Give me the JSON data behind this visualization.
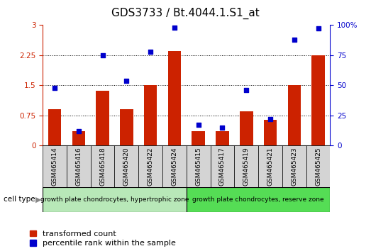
{
  "title": "GDS3733 / Bt.4044.1.S1_at",
  "categories": [
    "GSM465414",
    "GSM465416",
    "GSM465418",
    "GSM465420",
    "GSM465422",
    "GSM465424",
    "GSM465415",
    "GSM465417",
    "GSM465419",
    "GSM465421",
    "GSM465423",
    "GSM465425"
  ],
  "red_values": [
    0.9,
    0.35,
    1.37,
    0.9,
    1.5,
    2.35,
    0.35,
    0.35,
    0.85,
    0.65,
    1.5,
    2.25
  ],
  "blue_values": [
    48,
    12,
    75,
    54,
    78,
    98,
    17,
    15,
    46,
    22,
    88,
    97
  ],
  "left_ylim": [
    0,
    3.0
  ],
  "right_ylim": [
    0,
    100
  ],
  "left_yticks": [
    0,
    0.75,
    1.5,
    2.25,
    3.0
  ],
  "right_yticks": [
    0,
    25,
    50,
    75,
    100
  ],
  "left_yticklabels": [
    "0",
    "0.75",
    "1.5",
    "2.25",
    "3"
  ],
  "right_yticklabels": [
    "0",
    "25",
    "50",
    "75",
    "100%"
  ],
  "dotted_lines": [
    0.75,
    1.5,
    2.25
  ],
  "bar_color": "#cc2200",
  "dot_color": "#0000cc",
  "bar_width": 0.55,
  "group1_label": "growth plate chondrocytes, hypertrophic zone",
  "group2_label": "growth plate chondrocytes, reserve zone",
  "group1_color": "#b8e8b8",
  "group2_color": "#55dd55",
  "cell_type_label": "cell type",
  "legend_red": "transformed count",
  "legend_blue": "percentile rank within the sample",
  "title_fontsize": 11,
  "axis_fontsize": 7.5,
  "label_fontsize": 6.5,
  "legend_fontsize": 8,
  "group_fontsize": 6.5
}
